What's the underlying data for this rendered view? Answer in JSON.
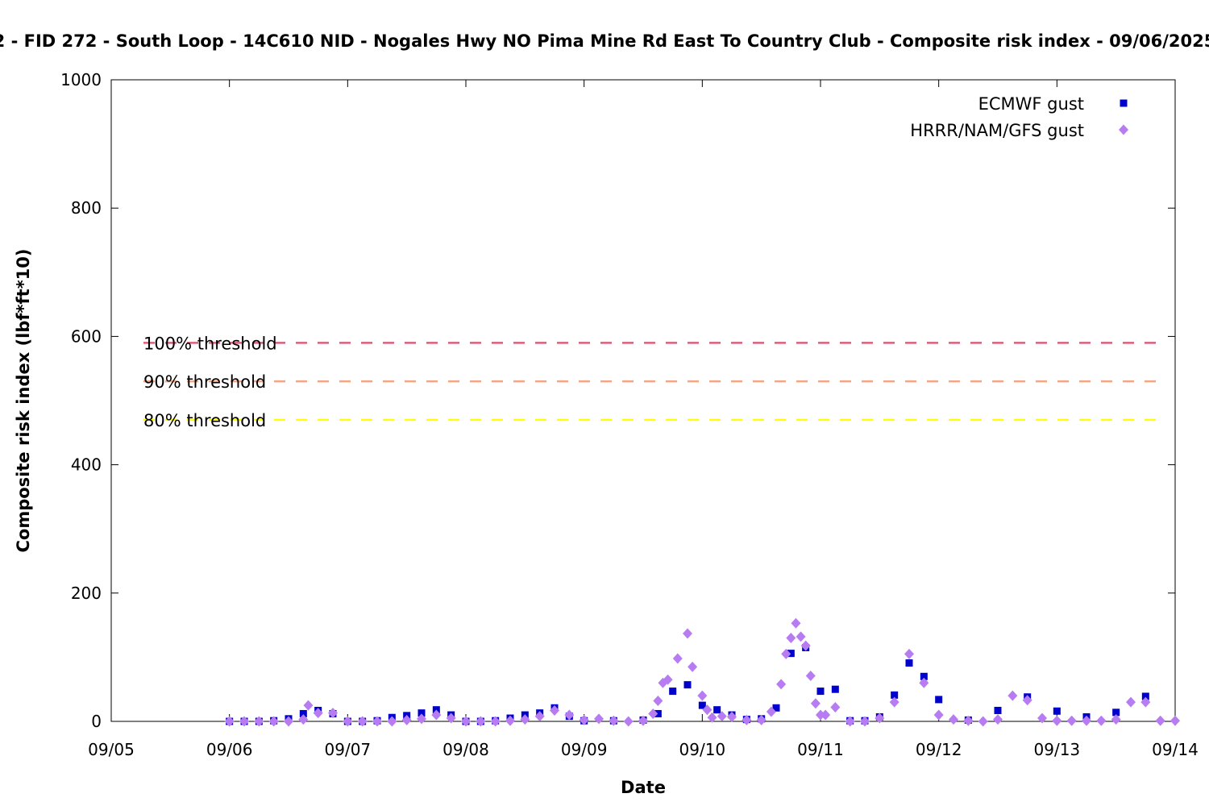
{
  "chart_data": {
    "type": "scatter",
    "title": "2 - FID 272 - South Loop - 14C610 NID - Nogales Hwy NO Pima Mine Rd East To Country Club - Composite risk index - 09/06/2025",
    "xlabel": "Date",
    "ylabel": "Composite risk index (lbf*ft*10)",
    "xlim": [
      "2025-09-05 00:00",
      "2025-09-14 00:00"
    ],
    "ylim": [
      0,
      1000
    ],
    "x_ticks": [
      "09/05",
      "09/06",
      "09/07",
      "09/08",
      "09/09",
      "09/10",
      "09/11",
      "09/12",
      "09/13",
      "09/14"
    ],
    "y_ticks": [
      0,
      200,
      400,
      600,
      800,
      1000
    ],
    "grid": false,
    "legend_position": "top-right",
    "thresholds": [
      {
        "label": "100% threshold",
        "value": 590,
        "color": "#d95f7a"
      },
      {
        "label": "90% threshold",
        "value": 530,
        "color": "#f4a582"
      },
      {
        "label": "80% threshold",
        "value": 470,
        "color": "#ffff00"
      }
    ],
    "series": [
      {
        "name": "ECMWF gust",
        "marker": "square",
        "color": "#0000cc",
        "points": [
          [
            "2025-09-06 00:00",
            0
          ],
          [
            "2025-09-06 03:00",
            0
          ],
          [
            "2025-09-06 06:00",
            0
          ],
          [
            "2025-09-06 09:00",
            1
          ],
          [
            "2025-09-06 12:00",
            4
          ],
          [
            "2025-09-06 15:00",
            12
          ],
          [
            "2025-09-06 18:00",
            17
          ],
          [
            "2025-09-06 21:00",
            12
          ],
          [
            "2025-09-07 00:00",
            0
          ],
          [
            "2025-09-07 03:00",
            0
          ],
          [
            "2025-09-07 06:00",
            1
          ],
          [
            "2025-09-07 09:00",
            6
          ],
          [
            "2025-09-07 12:00",
            9
          ],
          [
            "2025-09-07 15:00",
            13
          ],
          [
            "2025-09-07 18:00",
            18
          ],
          [
            "2025-09-07 21:00",
            10
          ],
          [
            "2025-09-08 00:00",
            0
          ],
          [
            "2025-09-08 03:00",
            0
          ],
          [
            "2025-09-08 06:00",
            1
          ],
          [
            "2025-09-08 09:00",
            5
          ],
          [
            "2025-09-08 12:00",
            10
          ],
          [
            "2025-09-08 15:00",
            13
          ],
          [
            "2025-09-08 18:00",
            21
          ],
          [
            "2025-09-08 21:00",
            8
          ],
          [
            "2025-09-09 00:00",
            1
          ],
          [
            "2025-09-09 06:00",
            1
          ],
          [
            "2025-09-09 12:00",
            2
          ],
          [
            "2025-09-09 15:00",
            12
          ],
          [
            "2025-09-09 18:00",
            47
          ],
          [
            "2025-09-09 21:00",
            57
          ],
          [
            "2025-09-10 00:00",
            25
          ],
          [
            "2025-09-10 03:00",
            18
          ],
          [
            "2025-09-10 06:00",
            10
          ],
          [
            "2025-09-10 09:00",
            3
          ],
          [
            "2025-09-10 12:00",
            4
          ],
          [
            "2025-09-10 15:00",
            21
          ],
          [
            "2025-09-10 18:00",
            106
          ],
          [
            "2025-09-10 21:00",
            115
          ],
          [
            "2025-09-11 00:00",
            47
          ],
          [
            "2025-09-11 03:00",
            50
          ],
          [
            "2025-09-11 06:00",
            1
          ],
          [
            "2025-09-11 09:00",
            1
          ],
          [
            "2025-09-11 12:00",
            7
          ],
          [
            "2025-09-11 15:00",
            41
          ],
          [
            "2025-09-11 18:00",
            91
          ],
          [
            "2025-09-11 21:00",
            70
          ],
          [
            "2025-09-12 00:00",
            34
          ],
          [
            "2025-09-12 06:00",
            2
          ],
          [
            "2025-09-12 12:00",
            17
          ],
          [
            "2025-09-12 18:00",
            38
          ],
          [
            "2025-09-13 00:00",
            16
          ],
          [
            "2025-09-13 06:00",
            7
          ],
          [
            "2025-09-13 12:00",
            14
          ],
          [
            "2025-09-13 18:00",
            39
          ]
        ]
      },
      {
        "name": "HRRR/NAM/GFS gust",
        "marker": "diamond",
        "color": "#b77cf2",
        "points": [
          [
            "2025-09-06 00:00",
            0
          ],
          [
            "2025-09-06 03:00",
            0
          ],
          [
            "2025-09-06 06:00",
            0
          ],
          [
            "2025-09-06 09:00",
            0
          ],
          [
            "2025-09-06 12:00",
            0
          ],
          [
            "2025-09-06 15:00",
            3
          ],
          [
            "2025-09-06 16:00",
            25
          ],
          [
            "2025-09-06 18:00",
            13
          ],
          [
            "2025-09-06 21:00",
            13
          ],
          [
            "2025-09-07 00:00",
            0
          ],
          [
            "2025-09-07 03:00",
            0
          ],
          [
            "2025-09-07 06:00",
            0
          ],
          [
            "2025-09-07 09:00",
            0
          ],
          [
            "2025-09-07 12:00",
            2
          ],
          [
            "2025-09-07 15:00",
            4
          ],
          [
            "2025-09-07 18:00",
            10
          ],
          [
            "2025-09-07 21:00",
            5
          ],
          [
            "2025-09-08 00:00",
            0
          ],
          [
            "2025-09-08 03:00",
            0
          ],
          [
            "2025-09-08 06:00",
            0
          ],
          [
            "2025-09-08 09:00",
            1
          ],
          [
            "2025-09-08 12:00",
            3
          ],
          [
            "2025-09-08 15:00",
            8
          ],
          [
            "2025-09-08 18:00",
            17
          ],
          [
            "2025-09-08 21:00",
            10
          ],
          [
            "2025-09-09 00:00",
            2
          ],
          [
            "2025-09-09 03:00",
            4
          ],
          [
            "2025-09-09 06:00",
            1
          ],
          [
            "2025-09-09 09:00",
            0
          ],
          [
            "2025-09-09 12:00",
            1
          ],
          [
            "2025-09-09 14:00",
            12
          ],
          [
            "2025-09-09 15:00",
            32
          ],
          [
            "2025-09-09 16:00",
            60
          ],
          [
            "2025-09-09 17:00",
            65
          ],
          [
            "2025-09-09 19:00",
            98
          ],
          [
            "2025-09-09 21:00",
            137
          ],
          [
            "2025-09-09 22:00",
            85
          ],
          [
            "2025-09-10 00:00",
            40
          ],
          [
            "2025-09-10 01:00",
            18
          ],
          [
            "2025-09-10 02:00",
            6
          ],
          [
            "2025-09-10 04:00",
            8
          ],
          [
            "2025-09-10 06:00",
            7
          ],
          [
            "2025-09-10 09:00",
            2
          ],
          [
            "2025-09-10 12:00",
            2
          ],
          [
            "2025-09-10 14:00",
            15
          ],
          [
            "2025-09-10 16:00",
            58
          ],
          [
            "2025-09-10 17:00",
            105
          ],
          [
            "2025-09-10 18:00",
            130
          ],
          [
            "2025-09-10 19:00",
            153
          ],
          [
            "2025-09-10 20:00",
            132
          ],
          [
            "2025-09-10 21:00",
            118
          ],
          [
            "2025-09-10 22:00",
            71
          ],
          [
            "2025-09-10 23:00",
            28
          ],
          [
            "2025-09-11 00:00",
            10
          ],
          [
            "2025-09-11 01:00",
            10
          ],
          [
            "2025-09-11 03:00",
            22
          ],
          [
            "2025-09-11 06:00",
            0
          ],
          [
            "2025-09-11 09:00",
            0
          ],
          [
            "2025-09-11 12:00",
            5
          ],
          [
            "2025-09-11 15:00",
            30
          ],
          [
            "2025-09-11 18:00",
            105
          ],
          [
            "2025-09-11 21:00",
            60
          ],
          [
            "2025-09-12 00:00",
            10
          ],
          [
            "2025-09-12 03:00",
            3
          ],
          [
            "2025-09-12 06:00",
            1
          ],
          [
            "2025-09-12 09:00",
            0
          ],
          [
            "2025-09-12 12:00",
            3
          ],
          [
            "2025-09-12 15:00",
            40
          ],
          [
            "2025-09-12 18:00",
            33
          ],
          [
            "2025-09-12 21:00",
            5
          ],
          [
            "2025-09-13 00:00",
            1
          ],
          [
            "2025-09-13 03:00",
            1
          ],
          [
            "2025-09-13 06:00",
            1
          ],
          [
            "2025-09-13 09:00",
            1
          ],
          [
            "2025-09-13 12:00",
            3
          ],
          [
            "2025-09-13 15:00",
            30
          ],
          [
            "2025-09-13 18:00",
            30
          ],
          [
            "2025-09-13 21:00",
            1
          ],
          [
            "2025-09-14 00:00",
            1
          ]
        ]
      }
    ]
  }
}
